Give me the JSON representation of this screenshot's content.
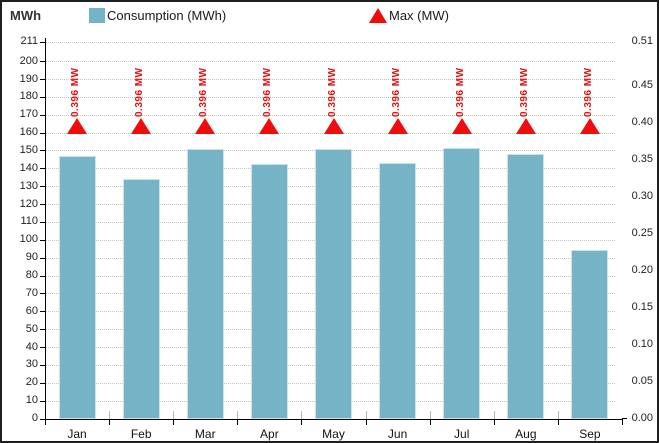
{
  "header": {
    "unit_label": "MWh",
    "legend": [
      {
        "label": "Consumption (MWh)",
        "swatch": "bar-swatch"
      },
      {
        "label": "Max (MW)",
        "swatch": "triangle-swatch"
      }
    ]
  },
  "chart_data": {
    "type": "bar",
    "title": "",
    "categories": [
      "Jan",
      "Feb",
      "Mar",
      "Apr",
      "May",
      "Jun",
      "Jul",
      "Aug",
      "Sep"
    ],
    "series": [
      {
        "name": "Consumption (MWh)",
        "type": "bar",
        "axis": "left",
        "color": "#74b4c6",
        "values": [
          147.3,
          134.2,
          150.9,
          142.9,
          150.9,
          143.1,
          151.7,
          148.3,
          94.4
        ]
      },
      {
        "name": "Max (MW)",
        "type": "point",
        "marker": "triangle-up",
        "axis": "right",
        "color": "#ee0c0c",
        "values": [
          0.396,
          0.396,
          0.396,
          0.396,
          0.396,
          0.396,
          0.396,
          0.396,
          0.396
        ],
        "point_labels": [
          "0.396 MW",
          "0.396 MW",
          "0.396 MW",
          "0.396 MW",
          "0.396 MW",
          "0.396 MW",
          "0.396 MW",
          "0.396 MW",
          "0.396 MW"
        ]
      }
    ],
    "left_axis": {
      "label": "MWh",
      "min": 0,
      "max": 211,
      "tick_labels": [
        "0",
        "10",
        "20",
        "30",
        "40",
        "50",
        "60",
        "70",
        "80",
        "90",
        "100",
        "110",
        "120",
        "130",
        "140",
        "150",
        "160",
        "170",
        "180",
        "190",
        "200",
        "211"
      ]
    },
    "right_axis": {
      "min": 0,
      "max": 0.51,
      "tick_labels": [
        "0.00",
        "0.05",
        "0.10",
        "0.15",
        "0.20",
        "0.25",
        "0.30",
        "0.35",
        "0.40",
        "0.45",
        "0.51"
      ]
    },
    "grid": {
      "horizontal": "dotted, at every left-axis tick",
      "vertical": "off"
    },
    "legend_position": "top"
  },
  "colors": {
    "bar_fill": "#74b4c6",
    "bar_border": "#cde3ea",
    "marker_red": "#ee0c0c",
    "grid": "#c3c3c3",
    "axis": "#000000"
  }
}
